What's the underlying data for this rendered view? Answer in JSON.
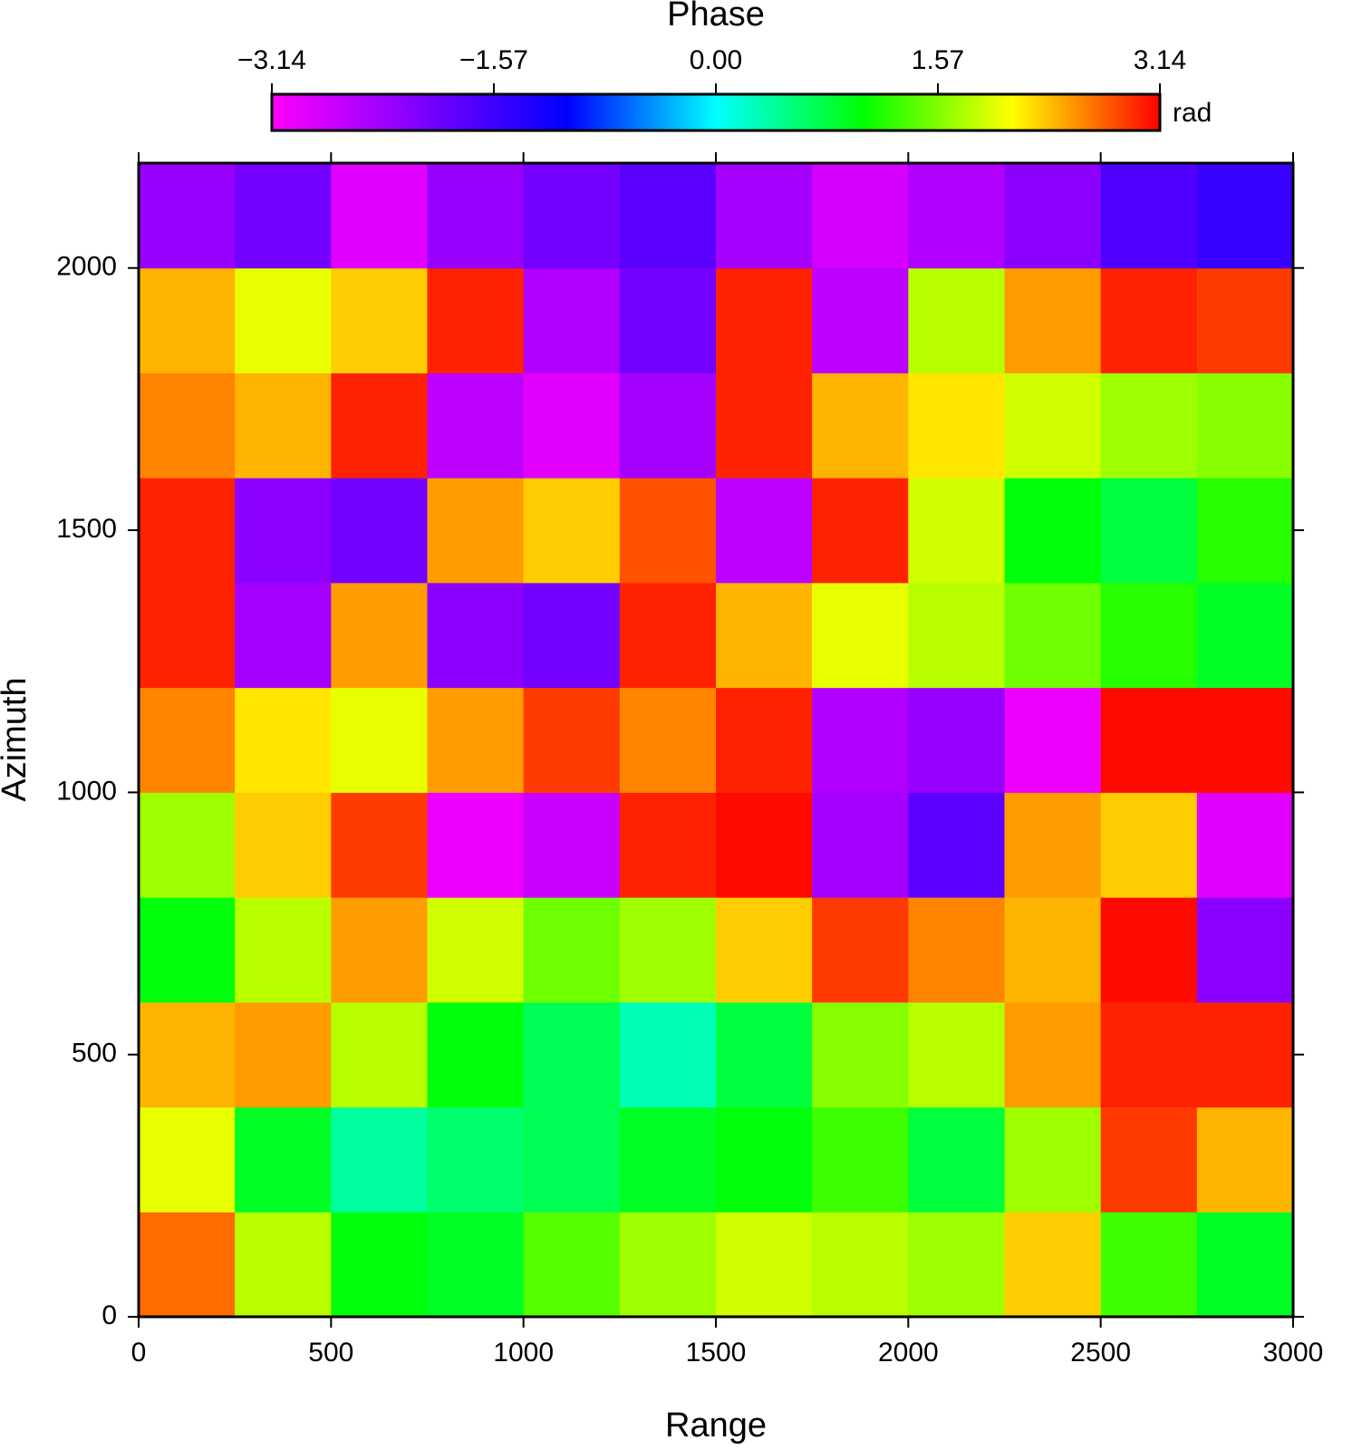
{
  "chart_data": {
    "type": "heatmap",
    "colorbar_title": "Phase",
    "colorbar_unit": "rad",
    "x_label": "Range",
    "y_label": "Azimuth",
    "clim": [
      -3.14,
      3.14
    ],
    "cticks": [
      {
        "value": -3.14,
        "label": "−3.14"
      },
      {
        "value": -1.57,
        "label": "−1.57"
      },
      {
        "value": 0,
        "label": "0.00"
      },
      1.57,
      3.14
    ],
    "colormap": [
      "#ff00ff",
      "#7f00ff",
      "#0000ff",
      "#00ffff",
      "#00ff00",
      "#ffff00",
      "#ff0000"
    ],
    "xlim": [
      0,
      3000
    ],
    "xticks": [
      0,
      500,
      1000,
      1500,
      2000,
      2500,
      3000
    ],
    "ylim": [
      0,
      2200
    ],
    "yticks": [
      0,
      500,
      1000,
      1500,
      2000
    ],
    "xbins": [
      0,
      250,
      500,
      750,
      1000,
      1250,
      1500,
      1750,
      2000,
      2250,
      2500,
      2750,
      3000
    ],
    "ybins": [
      0,
      200,
      400,
      600,
      800,
      1000,
      1200,
      1400,
      1600,
      1800,
      2000,
      2200
    ],
    "z": [
      [
        2.7,
        1.8,
        1.0,
        0.9,
        1.4,
        1.7,
        1.9,
        1.8,
        1.7,
        2.3,
        1.3,
        0.9
      ],
      [
        2.0,
        0.9,
        0.4,
        0.6,
        0.7,
        0.9,
        1.0,
        1.3,
        0.8,
        1.7,
        2.9,
        2.4
      ],
      [
        2.4,
        2.5,
        1.8,
        1.0,
        0.7,
        0.3,
        0.8,
        1.6,
        1.8,
        2.5,
        3.0,
        3.0
      ],
      [
        1.0,
        1.8,
        2.5,
        1.9,
        1.5,
        1.7,
        2.3,
        2.9,
        2.6,
        2.4,
        3.1,
        -2.2
      ],
      [
        1.7,
        2.3,
        2.9,
        -3.0,
        -2.7,
        3.0,
        3.1,
        -2.4,
        -1.8,
        2.5,
        2.3,
        -2.9
      ],
      [
        2.6,
        2.2,
        2.0,
        2.5,
        2.9,
        2.6,
        3.0,
        -2.5,
        -2.3,
        -3.0,
        3.1,
        3.1
      ],
      [
        3.0,
        -2.4,
        2.5,
        -2.2,
        -2.0,
        3.0,
        2.4,
        2.0,
        1.8,
        1.5,
        1.2,
        0.9
      ],
      [
        3.0,
        -2.2,
        -2.0,
        2.5,
        2.3,
        2.8,
        -2.6,
        3.0,
        1.9,
        1.0,
        0.8,
        1.2
      ],
      [
        2.6,
        2.4,
        3.0,
        -2.6,
        -2.9,
        -2.4,
        3.0,
        2.4,
        2.2,
        1.9,
        1.7,
        1.6
      ],
      [
        2.4,
        2.0,
        2.3,
        3.0,
        -2.5,
        -2.0,
        3.0,
        -2.6,
        1.8,
        2.5,
        3.0,
        2.9
      ],
      [
        -2.3,
        -2.0,
        -2.9,
        -2.3,
        -2.0,
        -1.8,
        -2.4,
        -2.8,
        -2.5,
        -2.2,
        -1.7,
        -1.5
      ]
    ]
  }
}
